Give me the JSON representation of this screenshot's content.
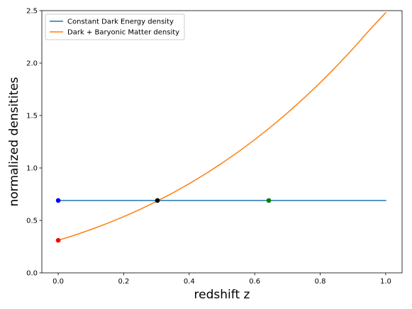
{
  "chart_data": {
    "type": "line",
    "title": "",
    "xlabel": "redshift z",
    "ylabel": "normalized densitites",
    "xlim": [
      -0.05,
      1.05
    ],
    "ylim": [
      0.0,
      2.5
    ],
    "xticks": [
      0.0,
      0.2,
      0.4,
      0.6,
      0.8,
      1.0
    ],
    "xtick_labels": [
      "0.0",
      "0.2",
      "0.4",
      "0.6",
      "0.8",
      "1.0"
    ],
    "yticks": [
      0.0,
      0.5,
      1.0,
      1.5,
      2.0,
      2.5
    ],
    "ytick_labels": [
      "0.0",
      "0.5",
      "1.0",
      "1.5",
      "2.0",
      "2.5"
    ],
    "grid": false,
    "legend_position": "top-left",
    "series": [
      {
        "name": "Constant Dark Energy density",
        "color": "#1f77b4",
        "x": [
          0.0,
          0.1,
          0.2,
          0.3,
          0.4,
          0.5,
          0.6,
          0.7,
          0.8,
          0.9,
          1.0
        ],
        "y": [
          0.69,
          0.69,
          0.69,
          0.69,
          0.69,
          0.69,
          0.69,
          0.69,
          0.69,
          0.69,
          0.69
        ]
      },
      {
        "name": "Dark + Baryonic Matter density",
        "color": "#ff7f0e",
        "x": [
          0.0,
          0.05,
          0.1,
          0.15,
          0.2,
          0.25,
          0.3,
          0.35,
          0.4,
          0.45,
          0.5,
          0.55,
          0.6,
          0.65,
          0.7,
          0.75,
          0.8,
          0.85,
          0.9,
          0.95,
          1.0
        ],
        "y": [
          0.31,
          0.359,
          0.413,
          0.472,
          0.536,
          0.605,
          0.681,
          0.762,
          0.85,
          0.944,
          1.046,
          1.154,
          1.27,
          1.393,
          1.525,
          1.665,
          1.813,
          1.971,
          2.137,
          2.313,
          2.48
        ]
      }
    ],
    "points": [
      {
        "x": 0.0,
        "y": 0.69,
        "color": "#0000ff"
      },
      {
        "x": 0.0,
        "y": 0.31,
        "color": "#ff0000"
      },
      {
        "x": 0.303,
        "y": 0.69,
        "color": "#000000"
      },
      {
        "x": 0.643,
        "y": 0.69,
        "color": "#008000"
      }
    ]
  }
}
